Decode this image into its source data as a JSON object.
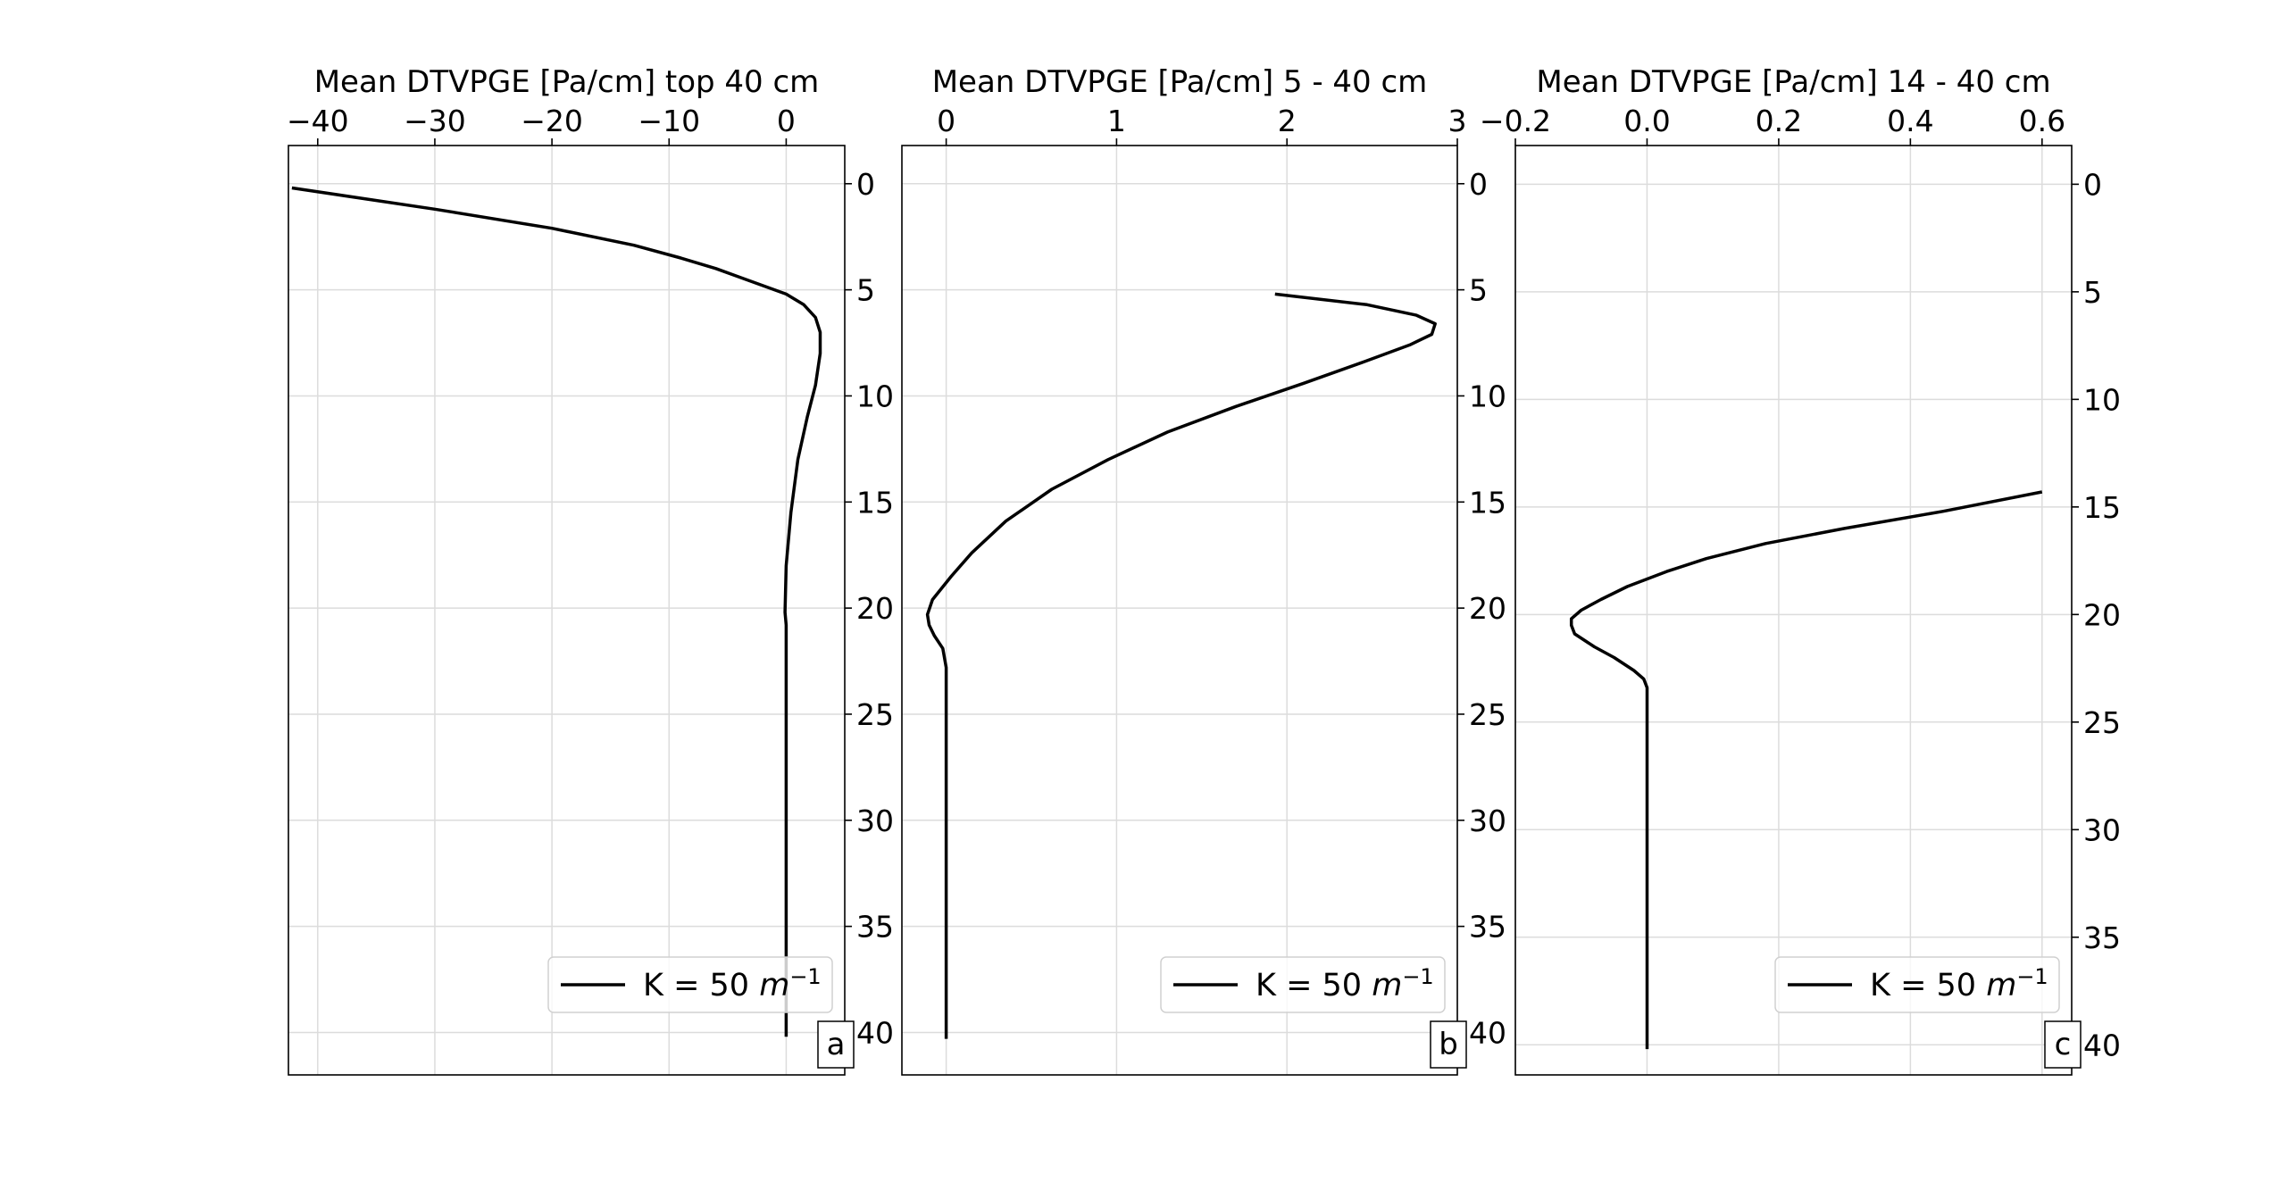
{
  "chart_data": [
    {
      "type": "line",
      "xlabel": "Mean DTVPGE [Pa/cm] top 40 cm",
      "xlim": [
        -42.5,
        5
      ],
      "xticks": [
        -40,
        -30,
        -20,
        -10,
        0
      ],
      "xtick_labels": [
        "−40",
        "−30",
        "−20",
        "−10",
        "0"
      ],
      "ylim": [
        42,
        -1.8
      ],
      "yticks": [
        0,
        5,
        10,
        15,
        20,
        25,
        30,
        35,
        40
      ],
      "ylabel": "",
      "grid": true,
      "panel_label": "a",
      "legend": {
        "label_prefix": "K = 50 ",
        "label_math_base": "m",
        "label_math_exp": "−1",
        "placement": "lower-right"
      },
      "series": [
        {
          "name": "K = 50 m⁻¹",
          "color": "#000000",
          "x": [
            -42.2,
            -30,
            -20,
            -13,
            -9,
            -6,
            -4,
            -2,
            0,
            1.5,
            2.5,
            2.9,
            2.9,
            2.5,
            1.8,
            1.0,
            0.4,
            0,
            -0.1,
            0,
            0,
            0,
            0,
            0,
            0
          ],
          "y": [
            0.2,
            1.2,
            2.1,
            2.9,
            3.5,
            4.0,
            4.4,
            4.8,
            5.2,
            5.7,
            6.3,
            7.0,
            8.0,
            9.5,
            11.0,
            13.0,
            15.5,
            18.0,
            20.2,
            20.8,
            22.5,
            25.0,
            30.0,
            35.0,
            40.2
          ]
        }
      ]
    },
    {
      "type": "line",
      "xlabel": "Mean DTVPGE [Pa/cm] 5 - 40 cm",
      "xlim": [
        -0.26,
        3.0
      ],
      "xticks": [
        0,
        1,
        2,
        3
      ],
      "xtick_labels": [
        "0",
        "1",
        "2",
        "3"
      ],
      "ylim": [
        42,
        -1.8
      ],
      "yticks": [
        0,
        5,
        10,
        15,
        20,
        25,
        30,
        35,
        40
      ],
      "ylabel": "",
      "grid": true,
      "panel_label": "b",
      "legend": {
        "label_prefix": "K = 50 ",
        "label_math_base": "m",
        "label_math_exp": "−1",
        "placement": "lower-right"
      },
      "series": [
        {
          "name": "K = 50 m⁻¹",
          "color": "#000000",
          "x": [
            1.93,
            2.47,
            2.76,
            2.87,
            2.85,
            2.72,
            2.45,
            2.1,
            1.7,
            1.3,
            0.95,
            0.62,
            0.35,
            0.15,
            0.03,
            -0.08,
            -0.11,
            -0.1,
            -0.07,
            -0.02,
            0,
            0,
            0,
            0,
            0
          ],
          "y": [
            5.2,
            5.7,
            6.2,
            6.6,
            7.1,
            7.6,
            8.4,
            9.4,
            10.5,
            11.7,
            13.0,
            14.4,
            15.9,
            17.4,
            18.5,
            19.6,
            20.3,
            20.8,
            21.3,
            21.9,
            22.8,
            25.0,
            30.0,
            35.0,
            40.3
          ]
        }
      ]
    },
    {
      "type": "line",
      "xlabel": "Mean DTVPGE [Pa/cm] 14 - 40 cm",
      "xlim": [
        -0.2,
        0.645
      ],
      "xticks": [
        -0.2,
        0.0,
        0.2,
        0.4,
        0.6
      ],
      "xtick_labels": [
        "−0.2",
        "0.0",
        "0.2",
        "0.4",
        "0.6"
      ],
      "ylim": [
        41.4,
        -1.8
      ],
      "yticks": [
        0,
        5,
        10,
        15,
        20,
        25,
        30,
        35,
        40
      ],
      "ylabel": "",
      "grid": true,
      "panel_label": "c",
      "legend": {
        "label_prefix": "K = 50 ",
        "label_math_base": "m",
        "label_math_exp": "−1",
        "placement": "lower-right"
      },
      "series": [
        {
          "name": "K = 50 m⁻¹",
          "color": "#000000",
          "x": [
            0.6,
            0.45,
            0.3,
            0.18,
            0.09,
            0.03,
            -0.03,
            -0.07,
            -0.1,
            -0.115,
            -0.115,
            -0.11,
            -0.08,
            -0.05,
            -0.02,
            -0.005,
            0,
            0,
            0,
            0,
            0
          ],
          "y": [
            14.3,
            15.2,
            16.0,
            16.7,
            17.4,
            18.0,
            18.7,
            19.3,
            19.8,
            20.2,
            20.5,
            20.9,
            21.5,
            22.0,
            22.6,
            23.0,
            23.4,
            25.0,
            30.0,
            35.0,
            40.2
          ]
        }
      ]
    }
  ]
}
